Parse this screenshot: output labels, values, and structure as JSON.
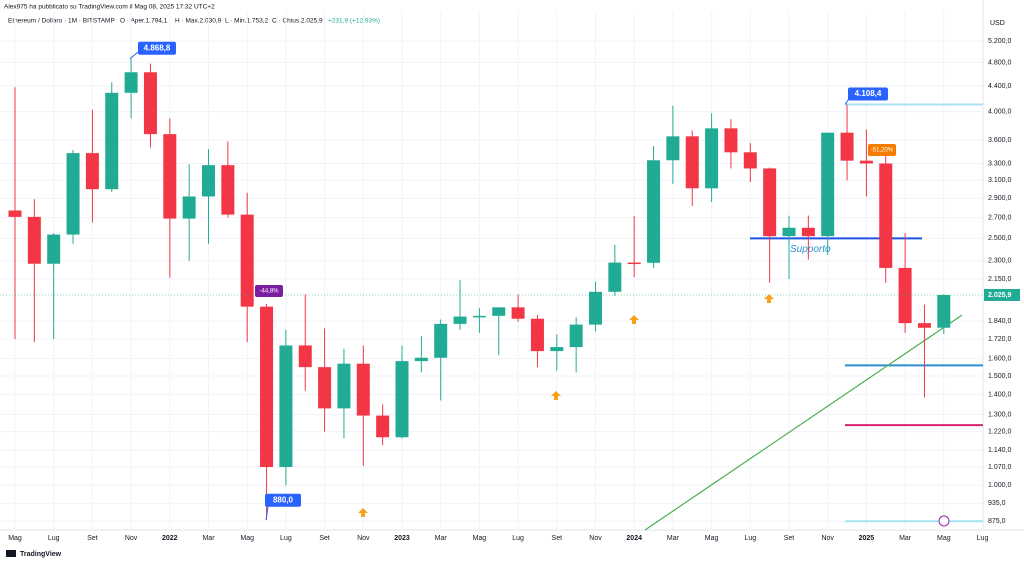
{
  "chart_data": {
    "type": "candlestick",
    "publisher": "Alex975 ha pubblicato su TradingView.com il Mag 08, 2025 17:32 UTC+2",
    "symbol": "Ethereum / Dollaro · 1M · BITSTAMP",
    "ohlc_header": {
      "open": "O · Aper.1.794,1",
      "high": "H · Max.2.030,9",
      "low": "L · Min.1.753,2",
      "close": "C · Chius.2.025,9",
      "change": "+231,9 (+12,93%)"
    },
    "currency": "USD",
    "logo": "TradingView",
    "categories": [
      "Mag",
      null,
      "Lug",
      null,
      "Set",
      null,
      "Nov",
      null,
      "2022",
      null,
      "Mar",
      null,
      "Mag",
      null,
      "Lug",
      null,
      "Set",
      null,
      "Nov",
      null,
      "2023",
      null,
      "Mar",
      null,
      "Mag",
      null,
      "Lug",
      null,
      "Set",
      null,
      "Nov",
      null,
      "2024",
      null,
      "Mar",
      null,
      "Mag",
      null,
      "Lug",
      null,
      "Set",
      null,
      "Nov",
      null,
      "2025",
      null,
      "Mar",
      null,
      "Mag",
      null,
      "Lug"
    ],
    "open": [
      2772,
      2707,
      2275,
      2535,
      3430,
      3000,
      4290,
      4630,
      3680,
      2690,
      2920,
      3280,
      2730,
      1940,
      1070,
      1680,
      1550,
      1330,
      1570,
      1295,
      1195,
      1585,
      1605,
      1820,
      1870,
      1875,
      1935,
      1855,
      1645,
      1670,
      1815,
      2050,
      2285,
      2283,
      3340,
      3650,
      3010,
      3760,
      3440,
      3240,
      2520,
      2600,
      2520,
      3700,
      3335,
      3300,
      2240,
      1825,
      1794.1,
      null,
      null
    ],
    "high": [
      4380,
      2890,
      2550,
      3470,
      4030,
      4460,
      4868.8,
      4780,
      3900,
      3290,
      3480,
      3580,
      2960,
      1960,
      1780,
      2030,
      1790,
      1660,
      1680,
      1350,
      1680,
      1740,
      1850,
      2140,
      1930,
      1930,
      2030,
      1880,
      1750,
      1865,
      2130,
      2440,
      2717,
      3520,
      4090,
      3730,
      3975,
      3890,
      3560,
      3250,
      2720,
      2720,
      3680,
      4108.4,
      3745,
      3440,
      2550,
      1955,
      2030.9,
      null,
      null
    ],
    "low": [
      1720,
      1700,
      1720,
      2450,
      2650,
      2970,
      3900,
      3500,
      2160,
      2300,
      2450,
      2700,
      1700,
      880,
      1000,
      1420,
      1220,
      1190,
      1075,
      1160,
      1190,
      1520,
      1370,
      1780,
      1760,
      1620,
      1835,
      1550,
      1530,
      1520,
      1770,
      2020,
      2164,
      2240,
      3060,
      2820,
      2860,
      3240,
      3080,
      2120,
      2150,
      2310,
      2350,
      3100,
      2920,
      2120,
      1760,
      1385,
      1753.2,
      null,
      null
    ],
    "close": [
      2707,
      2275,
      2535,
      3430,
      3000,
      4290,
      4630,
      3680,
      2690,
      2920,
      3280,
      2730,
      1940,
      1070,
      1680,
      1550,
      1330,
      1570,
      1295,
      1195,
      1585,
      1605,
      1820,
      1870,
      1875,
      1935,
      1855,
      1645,
      1670,
      1815,
      2050,
      2285,
      2283,
      3340,
      3650,
      3010,
      3760,
      3440,
      3240,
      2520,
      2600,
      2520,
      3700,
      3335,
      3300,
      2240,
      1825,
      1794,
      2025.9,
      null,
      null
    ],
    "up_color": "#22ab94",
    "down_color": "#f23645",
    "log_scale": true,
    "grid": true,
    "ylim": [
      847,
      5790
    ],
    "yticks": [
      {
        "value": 5200,
        "label": "5.200,0"
      },
      {
        "value": 4800,
        "label": "4.800,0"
      },
      {
        "value": 4400,
        "label": "4.400,0"
      },
      {
        "value": 4000,
        "label": "4.000,0"
      },
      {
        "value": 3600,
        "label": "3.600,0"
      },
      {
        "value": 3300,
        "label": "3.300,0"
      },
      {
        "value": 3100,
        "label": "3.100,0"
      },
      {
        "value": 2900,
        "label": "2.900,0"
      },
      {
        "value": 2700,
        "label": "2.700,0"
      },
      {
        "value": 2500,
        "label": "2.500,0"
      },
      {
        "value": 2300,
        "label": "2.300,0"
      },
      {
        "value": 2150,
        "label": "2.150,0"
      },
      {
        "value": 1840,
        "label": "1.840,0"
      },
      {
        "value": 1720,
        "label": "1.720,0"
      },
      {
        "value": 1600,
        "label": "1.600,0"
      },
      {
        "value": 1500,
        "label": "1.500,0"
      },
      {
        "value": 1400,
        "label": "1.400,0"
      },
      {
        "value": 1300,
        "label": "1.300,0"
      },
      {
        "value": 1220,
        "label": "1.220,0"
      },
      {
        "value": 1140,
        "label": "1.140,0"
      },
      {
        "value": 1070,
        "label": "1.070,0"
      },
      {
        "value": 1000,
        "label": "1.000,0"
      },
      {
        "value": 935,
        "label": "935,0"
      },
      {
        "value": 875,
        "label": "875,0"
      }
    ],
    "last_price": {
      "value": 2025.9,
      "label": "2.025,9"
    },
    "price_labels": [
      {
        "value": 4868.8,
        "label": "4.868,8"
      },
      {
        "value": 880,
        "label": "880,0"
      },
      {
        "value": 4108.4,
        "label": "4.108,4"
      }
    ],
    "percent_labels": [
      {
        "value": -44.8,
        "label": "-44,8%"
      },
      {
        "value": -51.2,
        "label": "-51,20%"
      }
    ],
    "support_text": "Supporto",
    "levels": [
      {
        "value": 2500,
        "color": "#1e53e5"
      },
      {
        "value": 1560,
        "color": "#2b8fd4"
      },
      {
        "value": 1250,
        "color": "#d6246f"
      },
      {
        "value": 4108.4,
        "color": "#a6e3f0"
      },
      {
        "value": 875,
        "color": "#a6e3f0"
      }
    ],
    "trendline": {
      "values": [
        847,
        1880
      ],
      "color": "#4caf50"
    }
  }
}
